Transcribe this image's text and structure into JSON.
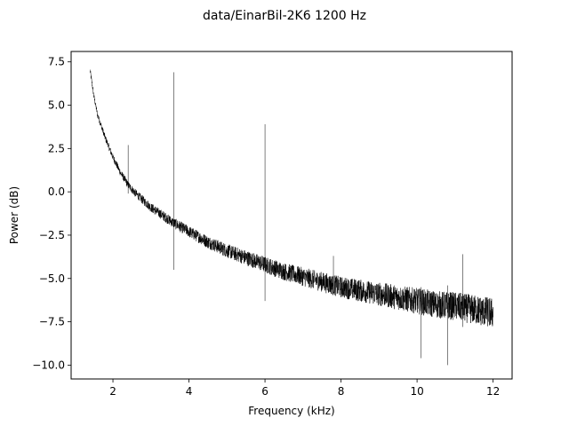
{
  "chart_data": {
    "type": "line",
    "title": "data/EinarBil-2K6   1200 Hz",
    "xlabel": "Frequency (kHz)",
    "ylabel": "Power (dB)",
    "xlim": [
      0.9,
      12.5
    ],
    "ylim": [
      -10.8,
      8.1
    ],
    "xticks": [
      2,
      4,
      6,
      8,
      10,
      12
    ],
    "xtick_labels": [
      "2",
      "4",
      "6",
      "8",
      "10",
      "12"
    ],
    "yticks": [
      7.5,
      5.0,
      2.5,
      0.0,
      -2.5,
      -5.0,
      -7.5,
      -10.0
    ],
    "ytick_labels": [
      "7.5",
      "5.0",
      "2.5",
      "0.0",
      "−2.5",
      "−5.0",
      "−7.5",
      "−10.0"
    ],
    "grid": false,
    "series": [
      {
        "color": "#000000",
        "x_range": [
          1.4,
          12.0
        ],
        "trend": {
          "x": [
            1.4,
            1.5,
            1.6,
            1.8,
            2.0,
            2.2,
            2.4,
            2.6,
            3.0,
            3.4,
            3.6,
            4.0,
            4.5,
            5.0,
            5.5,
            6.0,
            6.5,
            7.0,
            7.5,
            8.0,
            8.5,
            9.0,
            9.5,
            10.0,
            10.5,
            11.0,
            11.5,
            12.0
          ],
          "y": [
            7.0,
            5.5,
            4.4,
            3.1,
            2.0,
            1.1,
            0.4,
            -0.1,
            -0.9,
            -1.5,
            -1.8,
            -2.3,
            -2.9,
            -3.4,
            -3.8,
            -4.2,
            -4.6,
            -4.9,
            -5.2,
            -5.5,
            -5.7,
            -5.9,
            -6.1,
            -6.3,
            -6.5,
            -6.6,
            -6.8,
            -7.0
          ]
        },
        "peaks": [
          {
            "x": 2.4,
            "top": 2.7,
            "bottom": -0.1
          },
          {
            "x": 3.6,
            "top": 6.9,
            "bottom": -4.5
          },
          {
            "x": 6.0,
            "top": 3.9,
            "bottom": -6.3
          },
          {
            "x": 7.8,
            "top": -3.7,
            "bottom": -5.6
          },
          {
            "x": 10.1,
            "top": -5.5,
            "bottom": -9.6
          },
          {
            "x": 10.8,
            "top": -5.4,
            "bottom": -10.0
          },
          {
            "x": 11.2,
            "top": -3.6,
            "bottom": -7.8
          }
        ]
      }
    ]
  }
}
